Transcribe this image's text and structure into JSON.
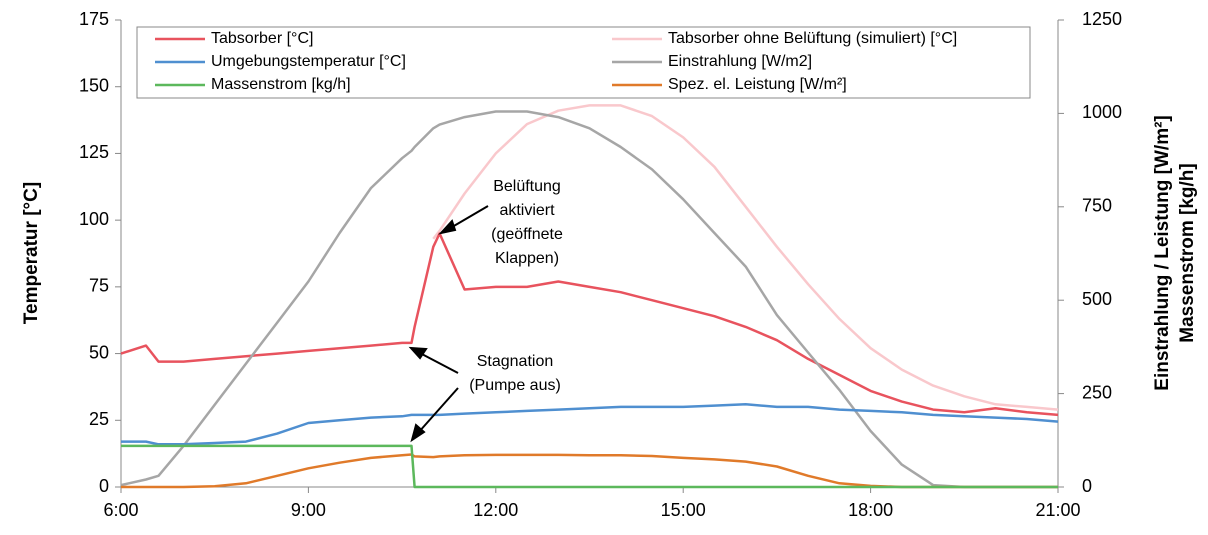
{
  "chart_data": {
    "type": "line",
    "ylabel": "Temperatur [°C]",
    "y2label": [
      "Einstrahlung / Leistung  [W/m²]",
      "Massenstrom [kg/h]"
    ],
    "annotations": [
      {
        "lines": [
          "Belüftung",
          "aktiviert",
          "(geöffnete",
          "Klappen)"
        ]
      },
      {
        "lines": [
          "Stagnation",
          "(Pumpe aus)"
        ]
      }
    ],
    "x": [
      6,
      6.4,
      6.6,
      7,
      7.5,
      8,
      8.5,
      9,
      9.5,
      10,
      10.5,
      10.65,
      10.7,
      11,
      11.1,
      11.5,
      12,
      12.5,
      13,
      13.5,
      14,
      14.5,
      15,
      15.5,
      16,
      16.5,
      17,
      17.5,
      18,
      18.5,
      19,
      19.5,
      20,
      20.5,
      21
    ],
    "xlim": [
      6,
      21
    ],
    "xticks": [
      {
        "value": 6,
        "label": "6:00"
      },
      {
        "value": 9,
        "label": "9:00"
      },
      {
        "value": 12,
        "label": "12:00"
      },
      {
        "value": 15,
        "label": "15:00"
      },
      {
        "value": 18,
        "label": "18:00"
      },
      {
        "value": 21,
        "label": "21:00"
      }
    ],
    "ylim": [
      0,
      175
    ],
    "yticks": [
      0,
      25,
      50,
      75,
      100,
      125,
      150,
      175
    ],
    "y2lim": [
      0,
      1250
    ],
    "y2ticks": [
      0,
      250,
      500,
      750,
      1000,
      1250
    ],
    "grid": false,
    "legend": "top",
    "series": [
      {
        "name": "Tabsorber [°C]",
        "color": "#e8535e",
        "values": [
          50,
          53,
          47,
          47,
          48,
          49,
          50,
          51,
          52,
          53,
          54,
          54,
          60,
          90,
          95,
          74,
          75,
          75,
          77,
          75,
          73,
          70,
          67,
          64,
          60,
          55,
          48,
          42,
          36,
          32,
          29,
          28,
          29.5,
          28,
          27
        ]
      },
      {
        "name": "Tabsorber ohne Belüftung (simuliert) [°C]",
        "color": "#f9c8cc",
        "values": [
          null,
          null,
          null,
          null,
          null,
          null,
          null,
          null,
          null,
          null,
          null,
          null,
          null,
          93,
          96,
          110,
          125,
          136,
          141,
          143,
          143,
          139,
          131,
          120,
          105,
          90,
          76,
          63,
          52,
          44,
          38,
          34,
          31,
          30,
          29
        ]
      },
      {
        "name": "Umgebungstemperatur [°C]",
        "color": "#4f8fd0",
        "values": [
          17,
          17,
          16,
          16,
          16.5,
          17,
          20,
          24,
          25,
          26,
          26.5,
          27,
          27,
          27,
          27,
          27.5,
          28,
          28.5,
          29,
          29.5,
          30,
          30,
          30,
          30.5,
          31,
          30,
          30,
          29,
          28.5,
          28,
          27,
          26.5,
          26,
          25.5,
          24.5
        ]
      },
      {
        "name": "Einstrahlung [W/m2]",
        "color": "#a6a6a6",
        "axis": "y2",
        "values": [
          5,
          20,
          30,
          110,
          220,
          330,
          440,
          550,
          680,
          800,
          880,
          900,
          910,
          960,
          970,
          990,
          1005,
          1005,
          990,
          960,
          910,
          850,
          770,
          680,
          590,
          460,
          360,
          260,
          150,
          60,
          5,
          0,
          0,
          0,
          0
        ]
      },
      {
        "name": "Massenstrom [kg/h]",
        "color": "#5cb85c",
        "axis": "y2",
        "values": [
          110,
          110,
          110,
          110,
          110,
          110,
          110,
          110,
          110,
          110,
          110,
          110,
          0,
          0,
          0,
          0,
          0,
          0,
          0,
          0,
          0,
          0,
          0,
          0,
          0,
          0,
          0,
          0,
          0,
          0,
          0,
          0,
          0,
          0,
          0
        ]
      },
      {
        "name": "Spez. el. Leistung [W/m²]",
        "color": "#e07a2a",
        "axis": "y2",
        "values": [
          0,
          0,
          0,
          0,
          2,
          10,
          30,
          50,
          65,
          78,
          85,
          87,
          82,
          80,
          82,
          85,
          86,
          86,
          86,
          85,
          85,
          83,
          78,
          74,
          68,
          55,
          30,
          10,
          3,
          0,
          0,
          0,
          0,
          0,
          0
        ]
      }
    ]
  }
}
